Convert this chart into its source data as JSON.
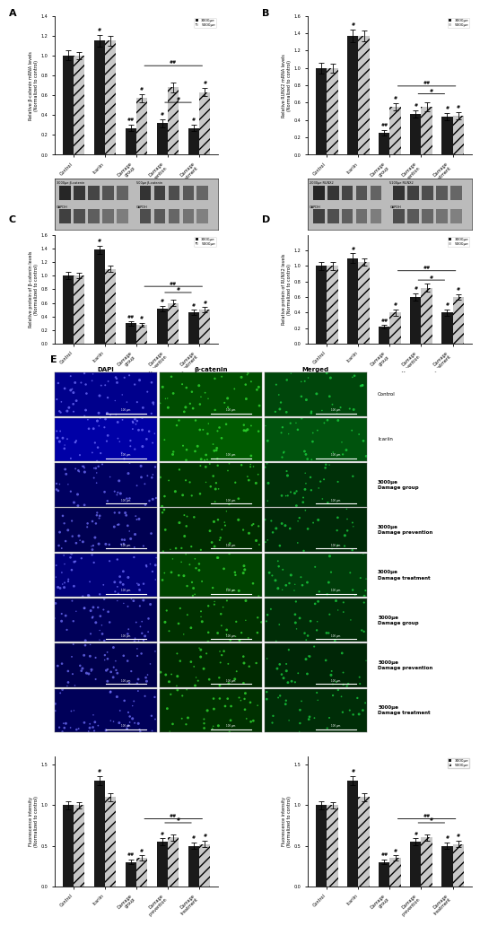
{
  "panel_A": {
    "title": "A",
    "ylabel": "Relative β-catenin mRNA levels\n(Normalized to control)",
    "groups": [
      "Control",
      "Icariin",
      "Damage\ngroup",
      "Damage\nprevention",
      "Damage\ntreatment"
    ],
    "black_vals": [
      1.0,
      1.15,
      0.27,
      0.32,
      0.27
    ],
    "black_err": [
      0.05,
      0.06,
      0.03,
      0.04,
      0.03
    ],
    "gray_vals": [
      1.0,
      1.15,
      0.57,
      0.68,
      0.63
    ],
    "gray_err": [
      0.04,
      0.05,
      0.04,
      0.05,
      0.04
    ],
    "ylim": [
      0,
      1.4
    ],
    "yticks": [
      0,
      0.2,
      0.4,
      0.6,
      0.8,
      1.0,
      1.2,
      1.4
    ],
    "legend_labels": [
      "3000μe",
      "5000μe"
    ]
  },
  "panel_B": {
    "title": "B",
    "ylabel": "Relative RUNX2 mRNA levels\n(Normalized to control)",
    "groups": [
      "Control",
      "Icariin",
      "Damage\ngroup",
      "Damage\nprevention",
      "Damage\ntreatment"
    ],
    "black_vals": [
      1.0,
      1.37,
      0.25,
      0.47,
      0.44
    ],
    "black_err": [
      0.06,
      0.07,
      0.03,
      0.04,
      0.04
    ],
    "gray_vals": [
      1.0,
      1.37,
      0.55,
      0.55,
      0.45
    ],
    "gray_err": [
      0.05,
      0.06,
      0.04,
      0.05,
      0.04
    ],
    "ylim": [
      0,
      1.6
    ],
    "yticks": [
      0,
      0.2,
      0.4,
      0.6,
      0.8,
      1.0,
      1.2,
      1.4,
      1.6
    ],
    "legend_labels": [
      "3000μe",
      "5000μe"
    ]
  },
  "panel_C": {
    "title": "C",
    "ylabel": "Relative protein of β-catenin levels\n(Normalized to control)",
    "groups": [
      "Control",
      "Icariin",
      "Damage\ngroup",
      "Damage\nprevention",
      "Damage\ntreatment"
    ],
    "black_vals": [
      1.0,
      1.38,
      0.3,
      0.52,
      0.46
    ],
    "black_err": [
      0.05,
      0.06,
      0.03,
      0.04,
      0.04
    ],
    "gray_vals": [
      1.0,
      1.1,
      0.28,
      0.6,
      0.5
    ],
    "gray_err": [
      0.04,
      0.05,
      0.03,
      0.05,
      0.04
    ],
    "ylim": [
      0,
      1.6
    ],
    "yticks": [
      0,
      0.2,
      0.4,
      0.6,
      0.8,
      1.0,
      1.2,
      1.4,
      1.6
    ],
    "legend_labels": [
      "3000μe",
      "5000μe"
    ]
  },
  "panel_D": {
    "title": "D",
    "ylabel": "Relative protein of RUNX2 levels\n(Normalized to control)",
    "groups": [
      "Control",
      "Icariin",
      "Damage\ngroup",
      "Damage\nprevention",
      "Damage\ntreatment"
    ],
    "black_vals": [
      1.0,
      1.1,
      0.22,
      0.6,
      0.4
    ],
    "black_err": [
      0.05,
      0.06,
      0.02,
      0.05,
      0.04
    ],
    "gray_vals": [
      1.0,
      1.05,
      0.4,
      0.72,
      0.6
    ],
    "gray_err": [
      0.05,
      0.05,
      0.04,
      0.05,
      0.04
    ],
    "ylim": [
      0,
      1.4
    ],
    "yticks": [
      0,
      0.2,
      0.4,
      0.6,
      0.8,
      1.0,
      1.2
    ],
    "legend_labels": [
      "3000μe",
      "5000μe"
    ]
  },
  "panel_E": {
    "title": "E",
    "col_labels": [
      "DAPI",
      "β-catenin",
      "Merged"
    ],
    "row_labels": [
      "Control",
      "Icariin",
      "3000μe\nDamage group",
      "3000μe\nDamage prevention",
      "3000μe\nDamage treatment",
      "5000μe\nDamage group",
      "5000μe\nDamage prevention",
      "5000μe\nDamage treatment"
    ],
    "scale_bar": "100 μm"
  },
  "panel_F": {
    "ylabel": "Fluorescence intensity\n(Normalized to control)",
    "groups": [
      "Control",
      "Icariin",
      "Damage\ngroup",
      "Damage\nprevention",
      "Damage\ntreatment"
    ],
    "black_vals": [
      1.0,
      1.3,
      0.3,
      0.55,
      0.5
    ],
    "black_err": [
      0.05,
      0.06,
      0.03,
      0.04,
      0.04
    ],
    "gray_vals": [
      1.0,
      1.1,
      0.35,
      0.6,
      0.52
    ],
    "gray_err": [
      0.04,
      0.05,
      0.03,
      0.04,
      0.04
    ],
    "ylim": [
      0,
      1.6
    ],
    "yticks": [
      0.0,
      0.5,
      1.0,
      1.5
    ],
    "legend_labels": [
      "3000μe",
      "5000μe"
    ]
  },
  "colors": {
    "black": "#1a1a1a",
    "gray": "#c8c8c8",
    "gray_hatch": "///",
    "background": "#ffffff"
  }
}
